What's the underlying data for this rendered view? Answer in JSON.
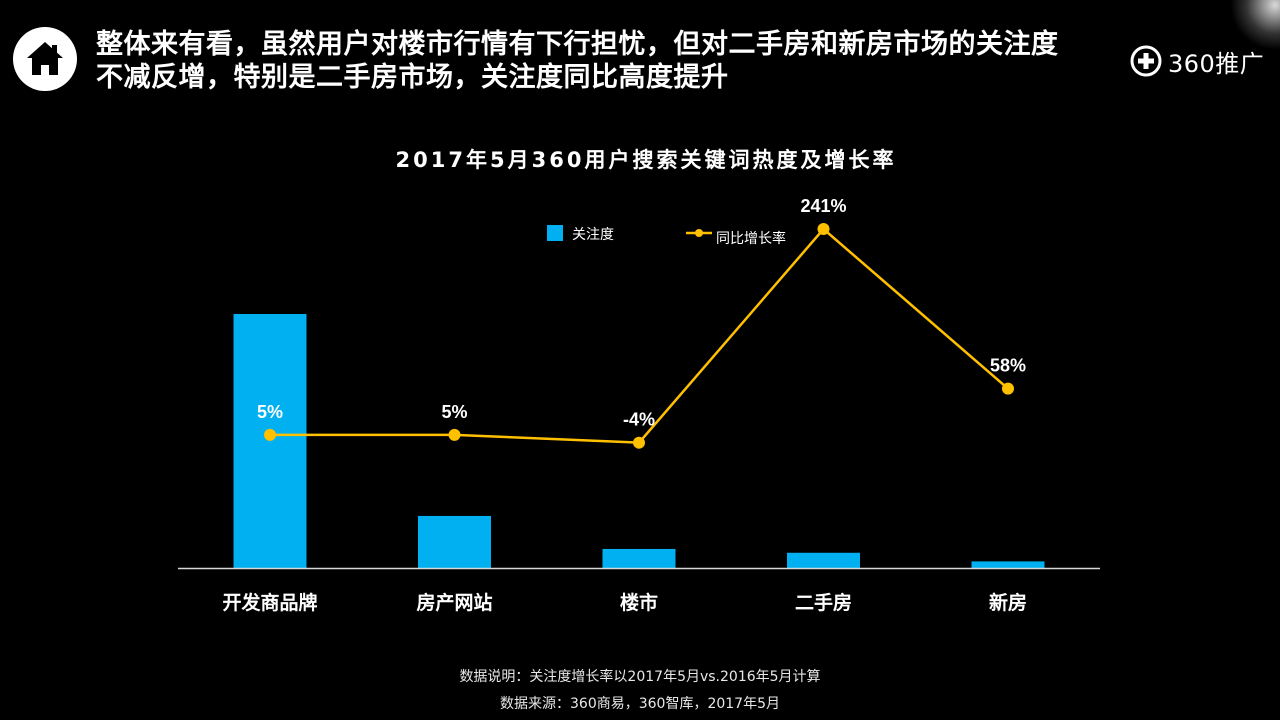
{
  "headline": {
    "line1": "整体来有看，虽然用户对楼市行情有下行担忧，但对二手房和新房市场的关注度",
    "line2": "不减反增，特别是二手房市场，关注度同比高度提升"
  },
  "brand": {
    "text": "360推广"
  },
  "icons": {
    "home": "home-icon",
    "brand": "plus-circle-icon"
  },
  "colors": {
    "bar": "#00b0f0",
    "line": "#ffc000",
    "background": "#000000",
    "text": "#ffffff"
  },
  "chart_data": {
    "type": "bar+line",
    "title": "2017年5月360用户搜索关键词热度及增长率",
    "categories": [
      "开发商品牌",
      "房产网站",
      "楼市",
      "二手房",
      "新房"
    ],
    "series": [
      {
        "name": "关注度",
        "type": "bar",
        "values": [
          100,
          20.5,
          7.5,
          6,
          2.6
        ]
      },
      {
        "name": "同比增长率",
        "type": "line",
        "values": [
          5,
          5,
          -4,
          241,
          58
        ],
        "labels": [
          "5%",
          "5%",
          "-4%",
          "241%",
          "58%"
        ]
      }
    ],
    "bar_ylim": [
      0,
      110
    ],
    "line_ylim": [
      -150,
      350
    ],
    "legend_position": "top-center",
    "grid": false
  },
  "footnotes": {
    "note": "数据说明：关注度增长率以2017年5月vs.2016年5月计算",
    "source": "数据来源：360商易，360智库，2017年5月"
  }
}
